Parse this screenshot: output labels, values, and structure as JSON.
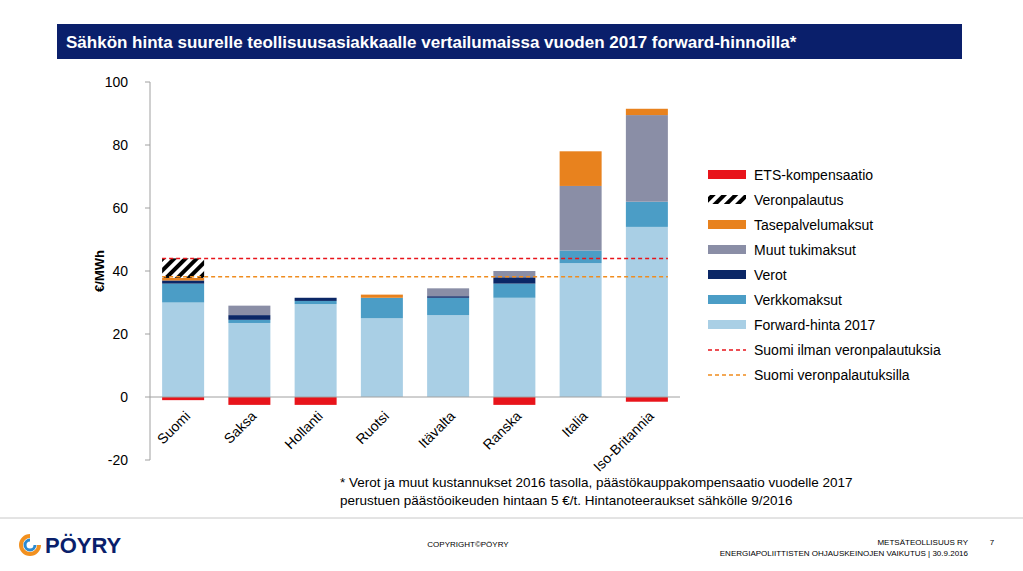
{
  "chart_data": {
    "type": "bar",
    "title": "Sähkön hinta suurelle teollisuusasiakkaalle vertailumaissa vuoden 2017 forward-hinnoilla*",
    "y_label": "€/MWh",
    "categories": [
      "Suomi",
      "Saksa",
      "Hollanti",
      "Ruotsi",
      "Itävalta",
      "Ranska",
      "Italia",
      "Iso-Britannia"
    ],
    "stacked": true,
    "grid": false,
    "legend": "right",
    "data_labels": false,
    "ylim": [
      -20,
      100
    ],
    "yticks": [
      -20,
      0,
      20,
      40,
      60,
      80,
      100
    ],
    "series": [
      {
        "name": "Forward-hinta 2017",
        "color": "#a9cfe5",
        "values": [
          30,
          23.5,
          29.5,
          25,
          26,
          31.5,
          42.5,
          54
        ]
      },
      {
        "name": "Verkkomaksut",
        "color": "#4b9dc6",
        "values": [
          6,
          1,
          1,
          6.5,
          5.5,
          4.5,
          4,
          8
        ]
      },
      {
        "name": "Verot",
        "color": "#0b2766",
        "values": [
          1,
          1.5,
          1,
          0,
          0.5,
          2,
          0,
          0
        ]
      },
      {
        "name": "Muut tukimaksut",
        "color": "#8a8ea6",
        "values": [
          0,
          3,
          0,
          0,
          2.5,
          2,
          20.5,
          27.5
        ]
      },
      {
        "name": "Tasepalvelumaksut",
        "color": "#e8821e",
        "values": [
          0.8,
          0,
          0,
          1,
          0,
          0,
          11,
          2
        ]
      },
      {
        "name": "Veronpalautus",
        "color": "#000000",
        "line_style": "hatched",
        "values": [
          6.2,
          0,
          0,
          0,
          0,
          0,
          0,
          0
        ]
      },
      {
        "name": "ETS-kompensaatio",
        "color": "#e8141b",
        "values": [
          -1,
          -2.5,
          -2.5,
          0,
          0,
          -2.5,
          0,
          -1.5
        ]
      }
    ],
    "reference_lines": [
      {
        "name": "Suomi ilman veronpalautuksia",
        "value": 44,
        "color": "#e8141b",
        "line_style": "dashed"
      },
      {
        "name": "Suomi veronpalautuksilla",
        "value": 38.2,
        "color": "#f08c1e",
        "line_style": "dashed"
      }
    ],
    "footnote": [
      "* Verot ja muut kustannukset 2016 tasolla, päästökauppakompensaatio vuodelle 2017",
      "perustuen päästöoikeuden hintaan 5 €/t. Hintanoteeraukset sähkölle 9/2016"
    ],
    "footer": {
      "logo": "PÖYRY",
      "copyright": "COPYRIGHT©PÖYRY",
      "organization": "METSÄTEOLLISUUS RY",
      "page": "7",
      "subtitle": "ENERGIAPOLIITTISTEN OHJAUSKEINOJEN VAIKUTUS | 30.9.2016"
    }
  }
}
